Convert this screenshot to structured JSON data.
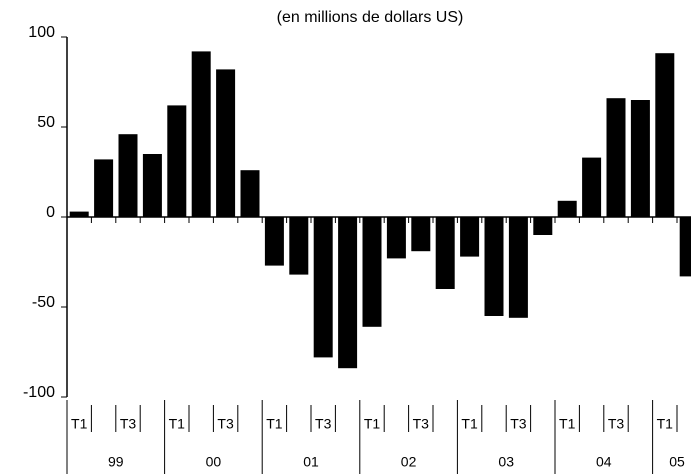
{
  "chart_data": {
    "type": "bar",
    "title": "(en millions de dollars US)",
    "categories": [
      "T1",
      null,
      "T3",
      null,
      "T1",
      null,
      "T3",
      null,
      "T1",
      null,
      "T3",
      null,
      "T1",
      null,
      "T3",
      null,
      "T1",
      null,
      "T3",
      null,
      "T1",
      null,
      "T3",
      null,
      "T1",
      null
    ],
    "years": [
      "99",
      "00",
      "01",
      "02",
      "03",
      "04",
      "05"
    ],
    "values": [
      3,
      32,
      46,
      35,
      62,
      92,
      82,
      26,
      -27,
      -32,
      -78,
      -84,
      -61,
      -23,
      -19,
      -40,
      -22,
      -55,
      -56,
      -10,
      9,
      33,
      66,
      65,
      91,
      -33
    ],
    "color": "#000000",
    "ylim": [
      -100,
      100
    ],
    "yticks": [
      -100,
      -50,
      0,
      50,
      100
    ]
  }
}
